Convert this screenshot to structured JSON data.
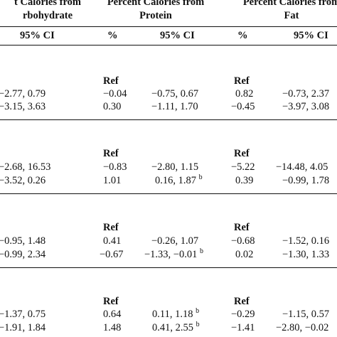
{
  "headers": {
    "carb_line1": "t Calories from",
    "carb_line2": "rbohydrate",
    "protein_line1": "Percent Calories from",
    "protein_line2": "Protein",
    "fat_line1": "Percent Calories from",
    "fat_line2": "Fat"
  },
  "subheaders": {
    "carb_ci": "95% CI",
    "protein_pct": "%",
    "protein_ci": "95% CI",
    "fat_pct": "%",
    "fat_ci": "95% CI"
  },
  "groups": [
    {
      "ref_protein": "Ref",
      "ref_fat": "Ref",
      "rows": [
        {
          "carb_ci": "−2.77, 0.79",
          "protein_pct": "−0.04",
          "protein_ci": "−0.75, 0.67",
          "protein_sup": "",
          "fat_pct": "0.82",
          "fat_ci": "−0.73, 2.37"
        },
        {
          "carb_ci": "−3.15, 3.63",
          "protein_pct": "0.30",
          "protein_ci": "−1.11, 1.70",
          "protein_sup": "",
          "fat_pct": "−0.45",
          "fat_ci": "−3.97, 3.08"
        }
      ]
    },
    {
      "ref_protein": "Ref",
      "ref_fat": "Ref",
      "rows": [
        {
          "carb_ci": "−2.68, 16.53",
          "protein_pct": "−0.83",
          "protein_ci": "−2.80, 1.15",
          "protein_sup": "",
          "fat_pct": "−5.22",
          "fat_ci": "−14.48, 4.05"
        },
        {
          "carb_ci": "−3.52, 0.26",
          "protein_pct": "1.01",
          "protein_ci": "0.16, 1.87",
          "protein_sup": "b",
          "fat_pct": "0.39",
          "fat_ci": "−0.99, 1.78"
        }
      ]
    },
    {
      "ref_protein": "Ref",
      "ref_fat": "Ref",
      "rows": [
        {
          "carb_ci": "−0.95, 1.48",
          "protein_pct": "0.41",
          "protein_ci": "−0.26, 1.07",
          "protein_sup": "",
          "fat_pct": "−0.68",
          "fat_ci": "−1.52, 0.16"
        },
        {
          "carb_ci": "−0.99, 2.34",
          "protein_pct": "−0.67",
          "protein_ci": "−1.33, −0.01",
          "protein_sup": "b",
          "fat_pct": "0.02",
          "fat_ci": "−1.30, 1.33"
        }
      ]
    },
    {
      "ref_protein": "Ref",
      "ref_fat": "Ref",
      "rows": [
        {
          "carb_ci": "−1.37, 0.75",
          "protein_pct": "0.64",
          "protein_ci": "0.11, 1.18",
          "protein_sup": "b",
          "fat_pct": "−0.29",
          "fat_ci": "−1.15, 0.57"
        },
        {
          "carb_ci": "−1.91, 1.84",
          "protein_pct": "1.48",
          "protein_ci": "0.41, 2.55",
          "protein_sup": "b",
          "fat_pct": "−1.41",
          "fat_ci": "−2.80, −0.02"
        }
      ]
    }
  ]
}
